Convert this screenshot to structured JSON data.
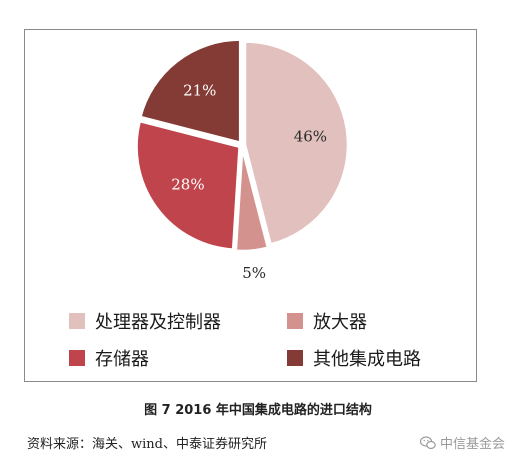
{
  "chart_data": {
    "type": "pie",
    "categories": [
      "处理器及控制器",
      "放大器",
      "存储器",
      "其他集成电路"
    ],
    "values": [
      46,
      5,
      28,
      21
    ],
    "data_labels": [
      "46%",
      "5%",
      "28%",
      "21%"
    ],
    "colors": [
      "#e2c0bd",
      "#d4928f",
      "#bf444b",
      "#843a35"
    ],
    "legend": {
      "position": "bottom",
      "entries": [
        "处理器及控制器",
        "放大器",
        "存储器",
        "其他集成电路"
      ]
    }
  },
  "caption": "图 7 2016 年中国集成电路的进口结构",
  "source": "资料来源：海关、wind、中泰证券研究所",
  "watermark": {
    "icon": "wechat-icon",
    "text": "中信基金会"
  }
}
